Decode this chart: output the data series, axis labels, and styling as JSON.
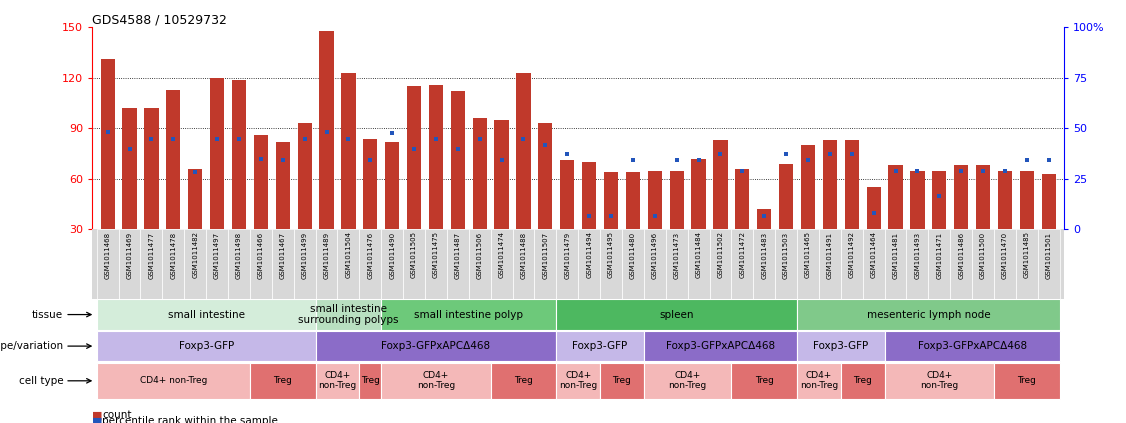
{
  "title": "GDS4588 / 10529732",
  "bar_color": "#c0392b",
  "dot_color": "#2255bb",
  "samples": [
    "GSM1011468",
    "GSM1011469",
    "GSM1011477",
    "GSM1011478",
    "GSM1011482",
    "GSM1011497",
    "GSM1011498",
    "GSM1011466",
    "GSM1011467",
    "GSM1011499",
    "GSM1011489",
    "GSM1011504",
    "GSM1011476",
    "GSM1011490",
    "GSM1011505",
    "GSM1011475",
    "GSM1011487",
    "GSM1011506",
    "GSM1011474",
    "GSM1011488",
    "GSM1011507",
    "GSM1011479",
    "GSM1011494",
    "GSM1011495",
    "GSM1011480",
    "GSM1011496",
    "GSM1011473",
    "GSM1011484",
    "GSM1011502",
    "GSM1011472",
    "GSM1011483",
    "GSM1011503",
    "GSM1011465",
    "GSM1011491",
    "GSM1011492",
    "GSM1011464",
    "GSM1011481",
    "GSM1011493",
    "GSM1011471",
    "GSM1011486",
    "GSM1011500",
    "GSM1011470",
    "GSM1011485",
    "GSM1011501"
  ],
  "bar_heights": [
    131,
    102,
    102,
    113,
    66,
    120,
    119,
    86,
    82,
    93,
    148,
    123,
    84,
    82,
    115,
    116,
    112,
    96,
    95,
    123,
    93,
    71,
    70,
    64,
    64,
    65,
    65,
    72,
    83,
    66,
    42,
    69,
    80,
    83,
    83,
    55,
    68,
    65,
    65,
    68,
    68,
    65,
    65,
    63
  ],
  "dot_heights": [
    88,
    78,
    84,
    84,
    64,
    84,
    84,
    72,
    71,
    84,
    88,
    84,
    71,
    87,
    78,
    84,
    78,
    84,
    71,
    84,
    80,
    75,
    38,
    38,
    71,
    38,
    71,
    71,
    75,
    65,
    38,
    75,
    71,
    75,
    75,
    40,
    65,
    65,
    50,
    65,
    65,
    65,
    71,
    71
  ],
  "ylim_left": [
    30,
    150
  ],
  "yticks_left": [
    30,
    60,
    90,
    120,
    150
  ],
  "yticks_right": [
    0,
    25,
    50,
    75,
    100
  ],
  "hgrid_vals": [
    60,
    90,
    120
  ],
  "tissue_regions": [
    {
      "label": "small intestine",
      "start": 0,
      "end": 9,
      "color": "#d4edda"
    },
    {
      "label": "small intestine\nsurrounding polyps",
      "start": 10,
      "end": 12,
      "color": "#b8dfc0"
    },
    {
      "label": "small intestine polyp",
      "start": 13,
      "end": 20,
      "color": "#6dc97a"
    },
    {
      "label": "spleen",
      "start": 21,
      "end": 31,
      "color": "#4db860"
    },
    {
      "label": "mesenteric lymph node",
      "start": 32,
      "end": 43,
      "color": "#80c98a"
    }
  ],
  "genotype_regions": [
    {
      "label": "Foxp3-GFP",
      "start": 0,
      "end": 9,
      "color": "#c5b8e8"
    },
    {
      "label": "Foxp3-GFPxAPCΔ468",
      "start": 10,
      "end": 20,
      "color": "#8b6cc8"
    },
    {
      "label": "Foxp3-GFP",
      "start": 21,
      "end": 24,
      "color": "#c5b8e8"
    },
    {
      "label": "Foxp3-GFPxAPCΔ468",
      "start": 25,
      "end": 31,
      "color": "#8b6cc8"
    },
    {
      "label": "Foxp3-GFP",
      "start": 32,
      "end": 35,
      "color": "#c5b8e8"
    },
    {
      "label": "Foxp3-GFPxAPCΔ468",
      "start": 36,
      "end": 43,
      "color": "#8b6cc8"
    }
  ],
  "celltype_regions": [
    {
      "label": "CD4+ non-Treg",
      "start": 0,
      "end": 6,
      "color": "#f4b8b8"
    },
    {
      "label": "Treg",
      "start": 7,
      "end": 9,
      "color": "#e07070"
    },
    {
      "label": "CD4+\nnon-Treg",
      "start": 10,
      "end": 11,
      "color": "#f4b8b8"
    },
    {
      "label": "Treg",
      "start": 12,
      "end": 12,
      "color": "#e07070"
    },
    {
      "label": "CD4+\nnon-Treg",
      "start": 13,
      "end": 17,
      "color": "#f4b8b8"
    },
    {
      "label": "Treg",
      "start": 18,
      "end": 20,
      "color": "#e07070"
    },
    {
      "label": "CD4+\nnon-Treg",
      "start": 21,
      "end": 22,
      "color": "#f4b8b8"
    },
    {
      "label": "Treg",
      "start": 23,
      "end": 24,
      "color": "#e07070"
    },
    {
      "label": "CD4+\nnon-Treg",
      "start": 25,
      "end": 28,
      "color": "#f4b8b8"
    },
    {
      "label": "Treg",
      "start": 29,
      "end": 31,
      "color": "#e07070"
    },
    {
      "label": "CD4+\nnon-Treg",
      "start": 32,
      "end": 33,
      "color": "#f4b8b8"
    },
    {
      "label": "Treg",
      "start": 34,
      "end": 35,
      "color": "#e07070"
    },
    {
      "label": "CD4+\nnon-Treg",
      "start": 36,
      "end": 40,
      "color": "#f4b8b8"
    },
    {
      "label": "Treg",
      "start": 41,
      "end": 43,
      "color": "#e07070"
    }
  ],
  "row_labels": [
    "tissue",
    "genotype/variation",
    "cell type"
  ],
  "legend": [
    {
      "marker": "s",
      "color": "#c0392b",
      "label": "count"
    },
    {
      "marker": "s",
      "color": "#2255bb",
      "label": "percentile rank within the sample"
    }
  ],
  "xtick_bg": "#d8d8d8"
}
